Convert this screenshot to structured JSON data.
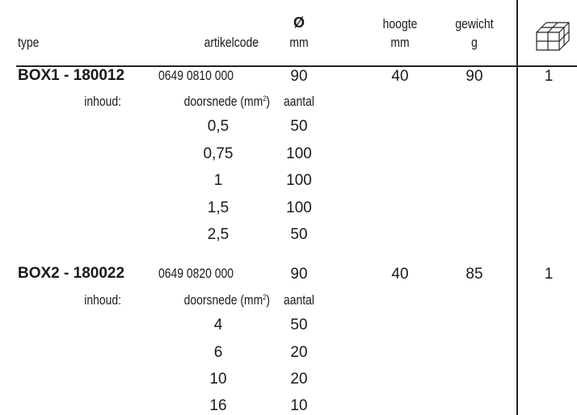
{
  "header": {
    "type": "type",
    "artikelcode": "artikelcode",
    "diameter_symbol": "Ø",
    "diameter_unit": "mm",
    "height_label": "hoogte",
    "height_unit": "mm",
    "weight_label": "gewicht",
    "weight_unit": "g"
  },
  "products": [
    {
      "name": "BOX1 - 180012",
      "code": "0649 0810 000",
      "diameter": "90",
      "height": "40",
      "weight": "90",
      "qty": "1",
      "contents_label": "inhoud:",
      "cross_section_label": "doorsnede (mm",
      "cross_section_sup": "2",
      "cross_section_close": ")",
      "count_label": "aantal",
      "rows": [
        {
          "section": "0,5",
          "count": "50"
        },
        {
          "section": "0,75",
          "count": "100"
        },
        {
          "section": "1",
          "count": "100"
        },
        {
          "section": "1,5",
          "count": "100"
        },
        {
          "section": "2,5",
          "count": "50"
        }
      ]
    },
    {
      "name": "BOX2 - 180022",
      "code": "0649 0820 000",
      "diameter": "90",
      "height": "40",
      "weight": "85",
      "qty": "1",
      "contents_label": "inhoud:",
      "cross_section_label": "doorsnede (mm",
      "cross_section_sup": "2",
      "cross_section_close": ")",
      "count_label": "aantal",
      "rows": [
        {
          "section": "4",
          "count": "50"
        },
        {
          "section": "6",
          "count": "20"
        },
        {
          "section": "10",
          "count": "20"
        },
        {
          "section": "16",
          "count": "10"
        }
      ]
    }
  ]
}
